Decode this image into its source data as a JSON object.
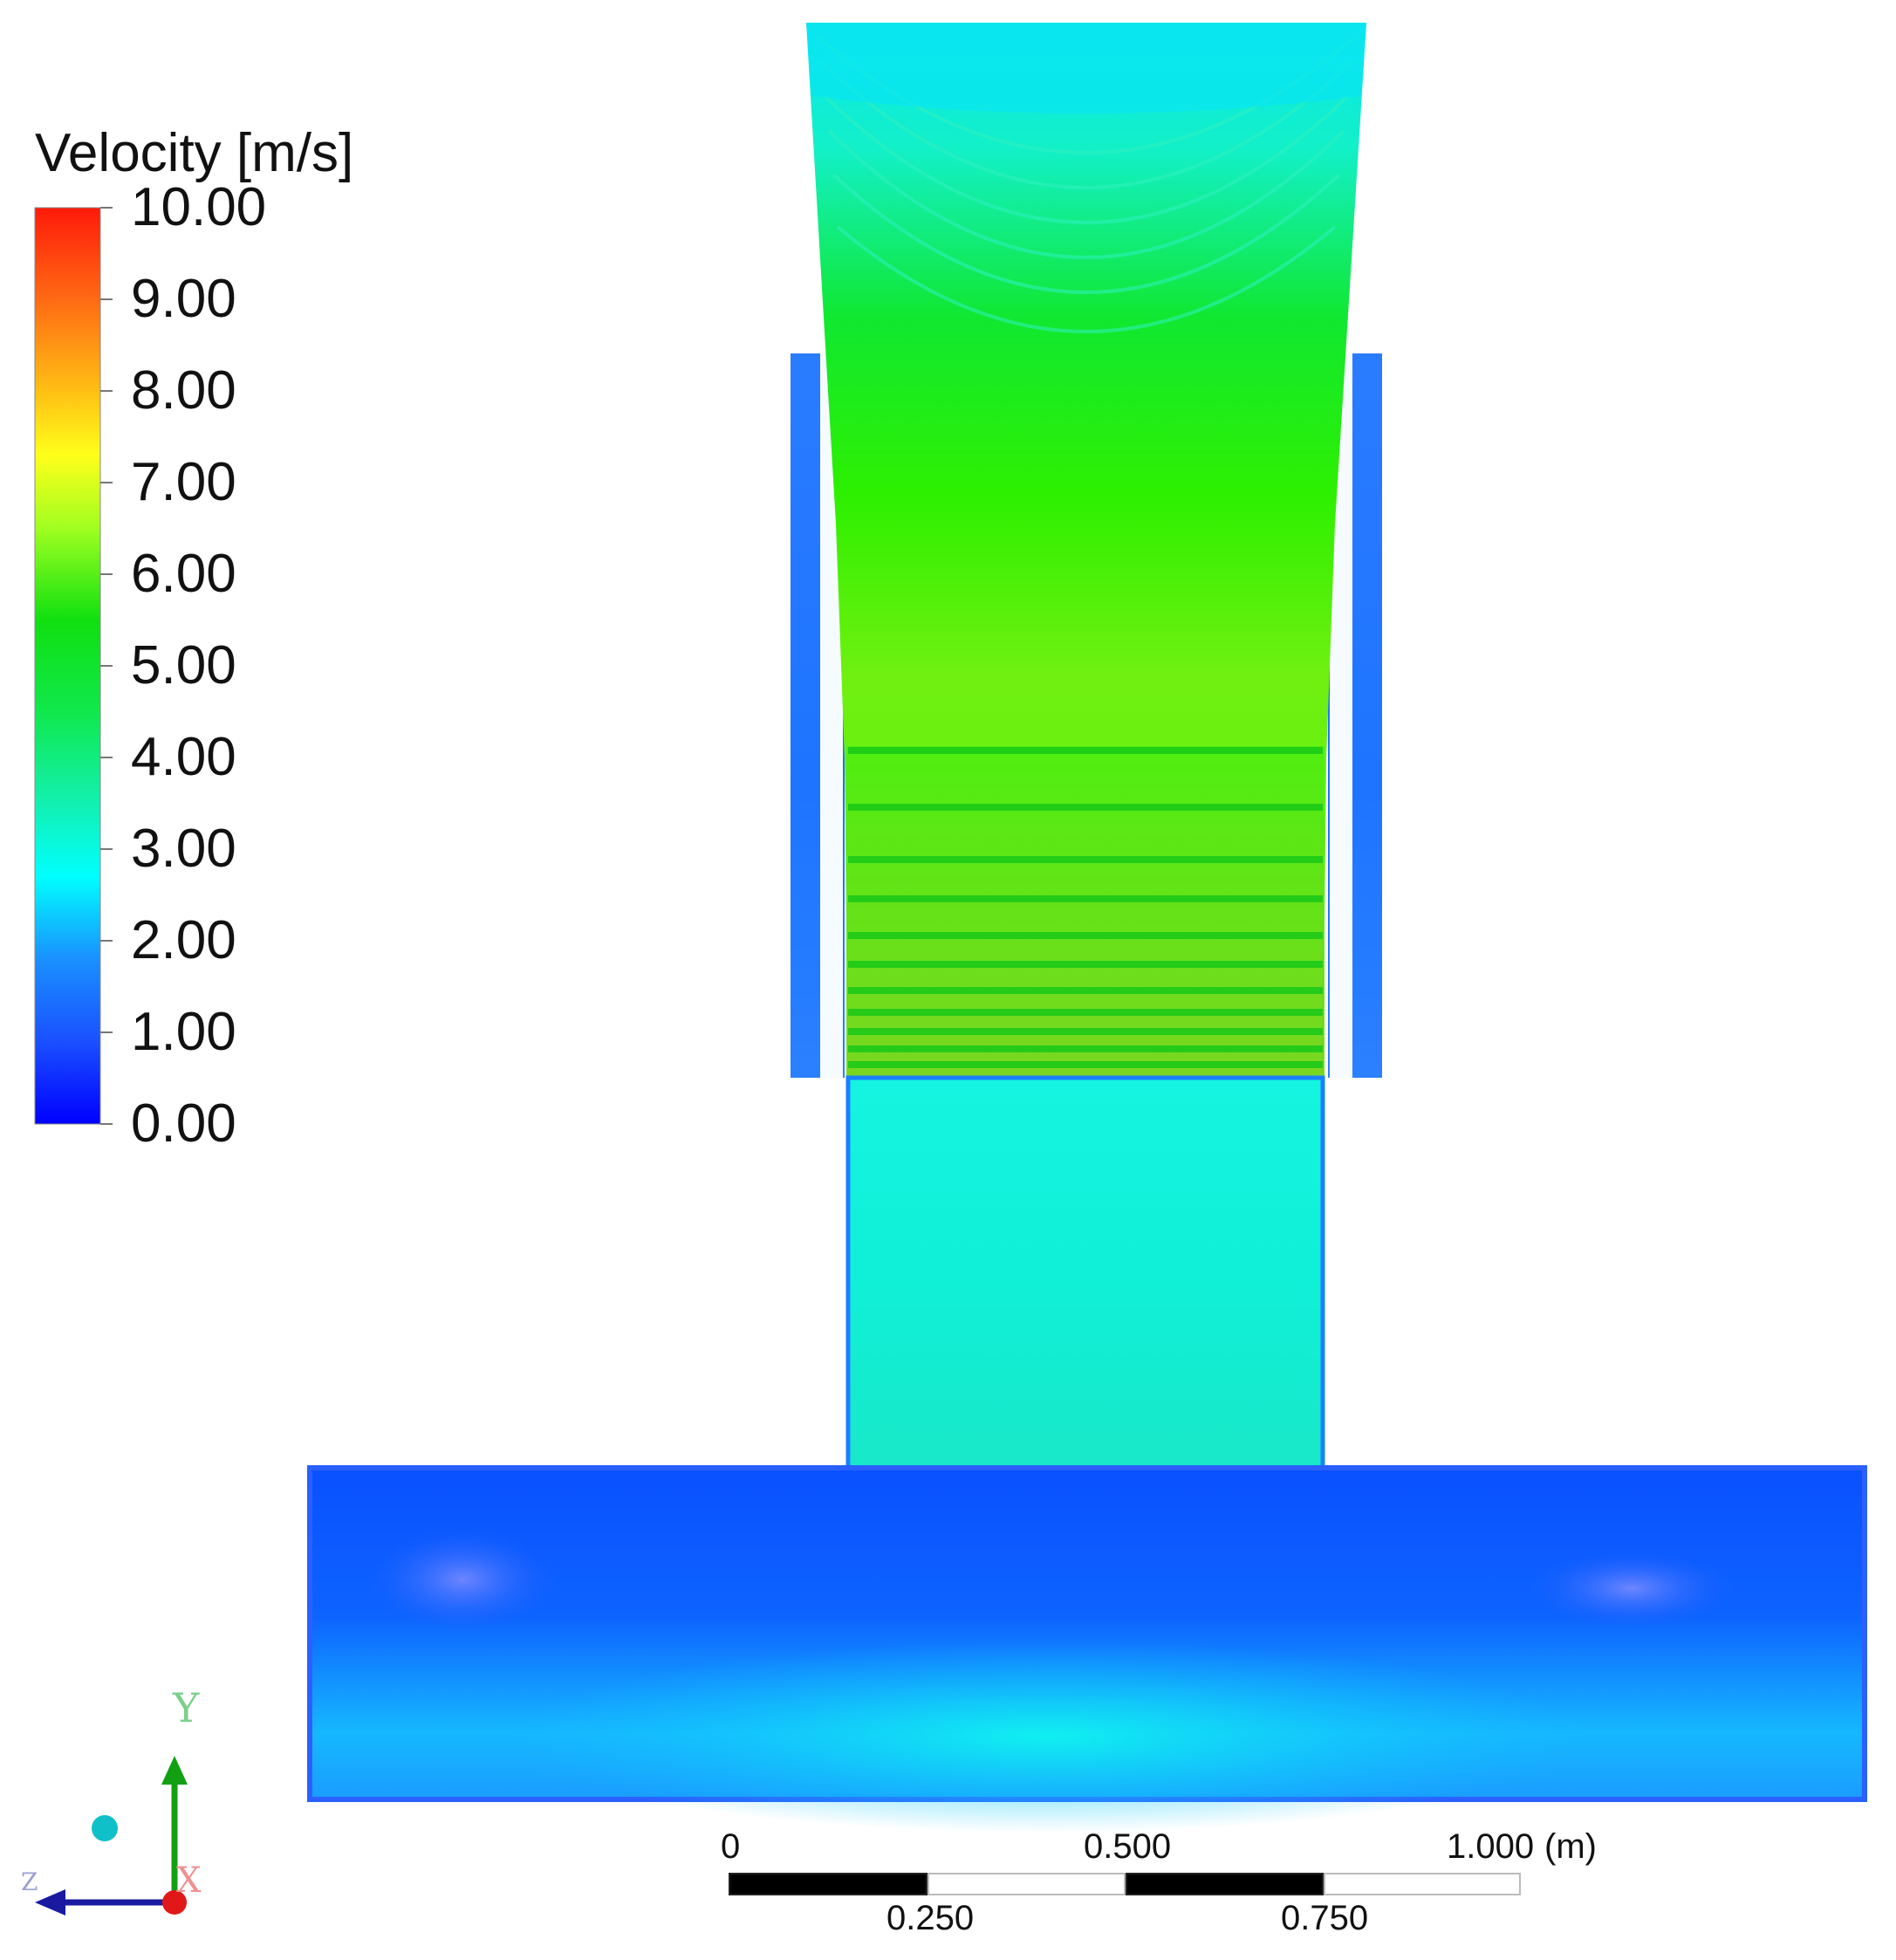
{
  "legend": {
    "title": "Velocity [m/s]",
    "labels": [
      "10.00",
      "9.00",
      "8.00",
      "7.00",
      "6.00",
      "5.00",
      "4.00",
      "3.00",
      "2.00",
      "1.00",
      "0.00"
    ],
    "min": 0,
    "max": 10,
    "colors": {
      "red": "#ff1a0a",
      "orange": "#ff8a1a",
      "yellow": "#ffff1a",
      "yellow_green": "#a0ff20",
      "green": "#10e010",
      "cyan_green": "#12f0a0",
      "cyan": "#00ffff",
      "blue": "#1a80ff",
      "dark_blue": "#0000ff"
    }
  },
  "scale_bar": {
    "top_labels": [
      "0",
      "0.500",
      "1.000"
    ],
    "bottom_labels": [
      "0.250",
      "0.750"
    ],
    "unit": "(m)"
  },
  "axes_triad": {
    "y_label": "Y",
    "x_label": "X",
    "z_label": "Z"
  }
}
